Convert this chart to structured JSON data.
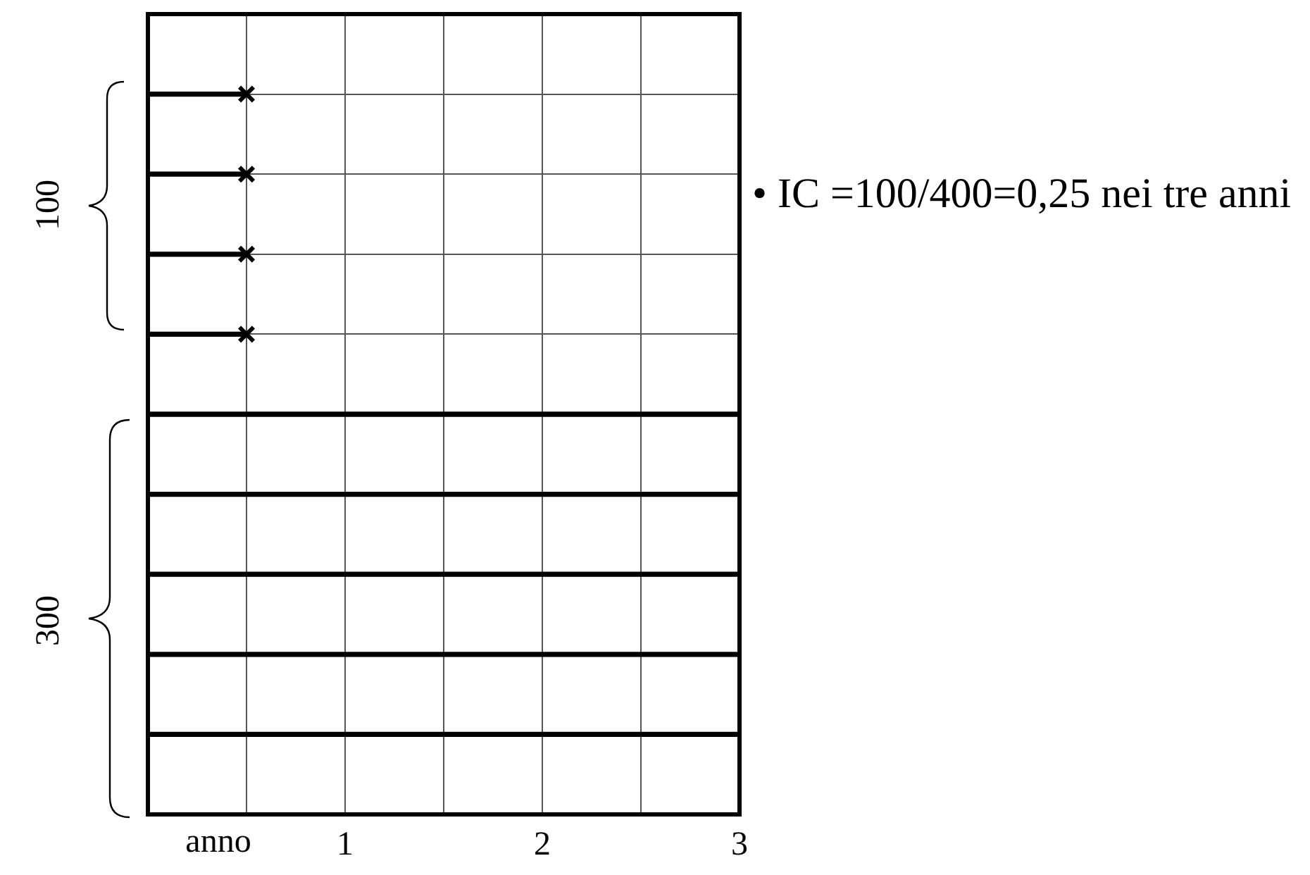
{
  "chart_data": {
    "type": "bar",
    "orientation": "horizontal",
    "categories": [
      null,
      null,
      null,
      null,
      null,
      null,
      null,
      null,
      null,
      null,
      null
    ],
    "series": [
      {
        "color": "#000000",
        "values": [
          null,
          0.5,
          0.5,
          0.5,
          0.5,
          3,
          3,
          3,
          3,
          3,
          null
        ]
      },
      {
        "type": "scatter",
        "color": "#000000",
        "marker": "cross",
        "values": [
          null,
          0.5,
          0.5,
          0.5,
          0.5,
          null,
          null,
          null,
          null,
          null,
          null
        ]
      }
    ],
    "xlim": [
      0,
      3
    ],
    "xticks": [
      {
        "value": 0,
        "label": null
      },
      {
        "value": 0.5,
        "label": null
      },
      1,
      {
        "value": 1.5,
        "label": null
      },
      2,
      {
        "value": 2.5,
        "label": null
      },
      3
    ],
    "xlabel": "anno",
    "grid": true,
    "legend": false,
    "tick_labels": "x",
    "annotations": [
      "100",
      "300",
      "• IC =100/400=0,25 nei tre anni"
    ]
  }
}
